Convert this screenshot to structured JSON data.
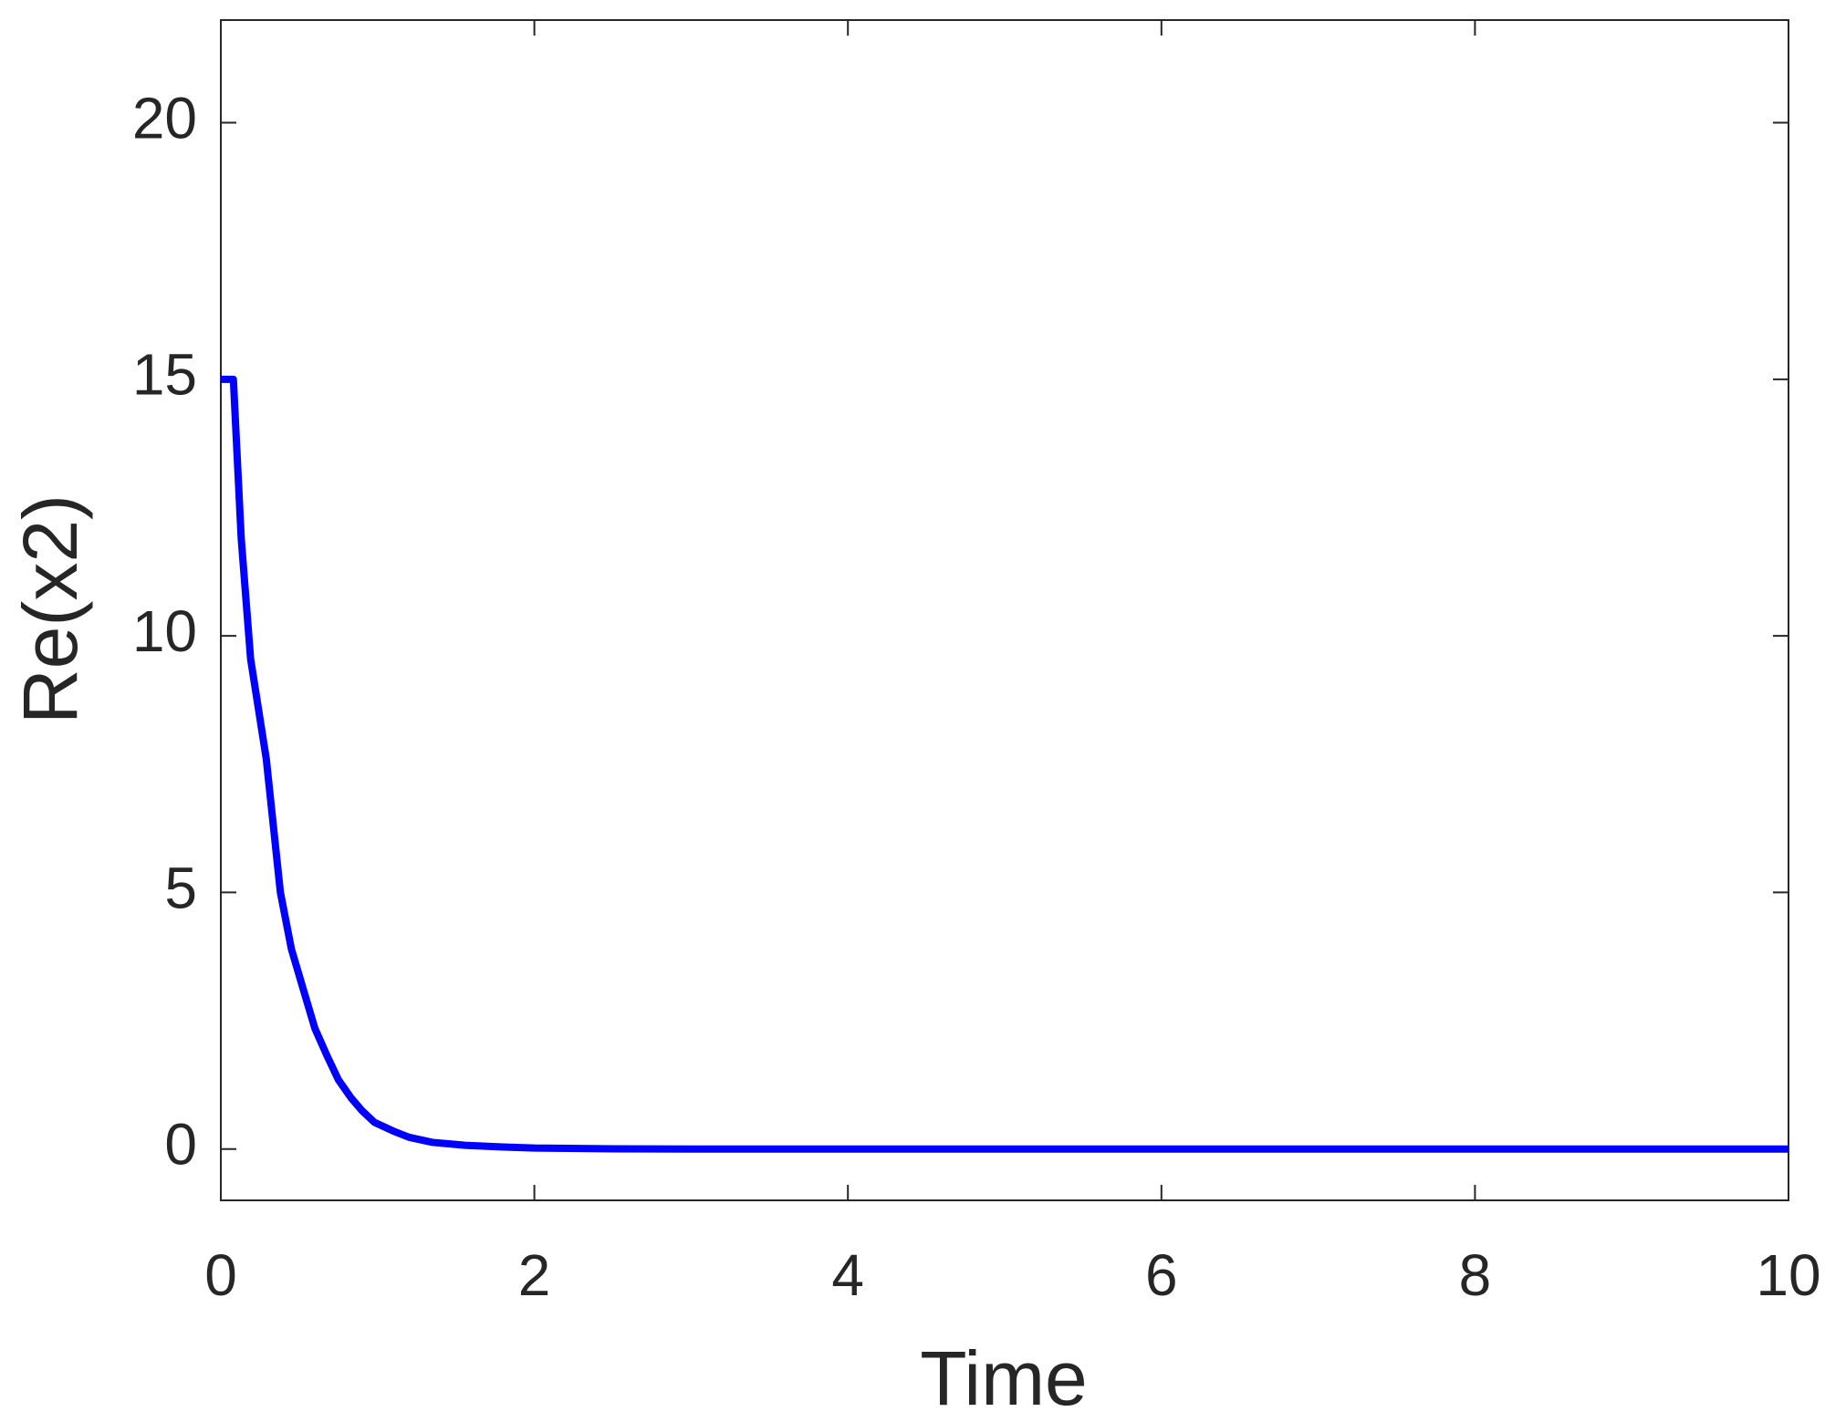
{
  "chart_data": {
    "type": "line",
    "x_label": "Time",
    "y_label": "Re(x2)",
    "x": [
      0,
      0.08,
      0.13,
      0.19,
      0.29,
      0.38,
      0.45,
      0.53,
      0.6,
      0.68,
      0.75,
      0.83,
      0.9,
      0.98,
      1.1,
      1.2,
      1.35,
      1.57,
      1.8,
      2,
      2.5,
      3,
      4,
      5,
      6,
      7,
      8,
      9,
      10
    ],
    "series": [
      {
        "color": "#0000ff",
        "values": [
          15,
          15,
          11.9,
          9.55,
          7.6,
          5.0,
          3.9,
          3.07,
          2.35,
          1.8,
          1.35,
          1.0,
          0.75,
          0.52,
          0.35,
          0.23,
          0.13,
          0.07,
          0.04,
          0.02,
          0.005,
          0,
          0,
          0,
          0,
          0,
          0,
          0,
          0
        ]
      }
    ],
    "xlim": [
      0,
      10
    ],
    "xticks": [
      0,
      2,
      4,
      6,
      8,
      10
    ],
    "ylim": [
      -1,
      22
    ],
    "yticks": [
      0,
      5,
      10,
      15,
      20
    ],
    "grid": false
  }
}
